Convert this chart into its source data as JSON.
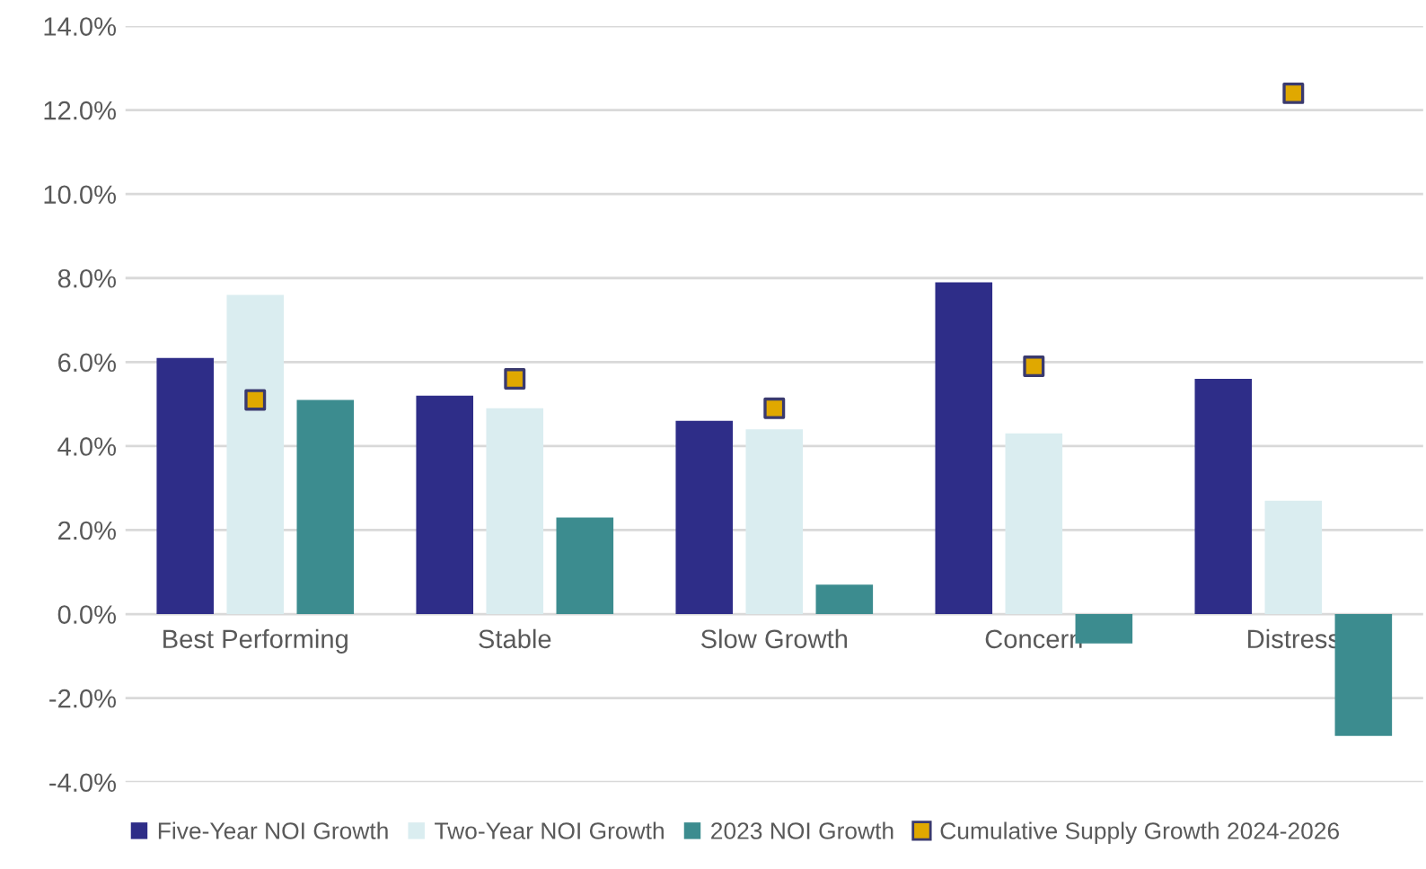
{
  "chart_data": {
    "type": "bar",
    "categories": [
      "Best Performing",
      "Stable",
      "Slow Growth",
      "Concern",
      "Distress"
    ],
    "series": [
      {
        "name": "Five-Year NOI Growth",
        "color": "#2e2d88",
        "values": [
          6.1,
          5.2,
          4.6,
          7.9,
          5.6
        ]
      },
      {
        "name": "Two-Year NOI Growth",
        "color": "#daedf0",
        "values": [
          7.6,
          4.9,
          4.4,
          4.3,
          2.7
        ]
      },
      {
        "name": "2023 NOI Growth",
        "color": "#3c8c8f",
        "values": [
          5.1,
          2.3,
          0.7,
          -0.7,
          -2.9
        ]
      },
      {
        "name": "Cumulative Supply Growth 2024-2026",
        "color": "#e0a800",
        "type": "scatter",
        "values": [
          5.1,
          5.6,
          4.9,
          5.9,
          12.4
        ]
      }
    ],
    "ylim": [
      -4,
      14
    ],
    "yticks": [
      {
        "value": -4,
        "label": "-4.0%"
      },
      {
        "value": -2,
        "label": "-2.0%"
      },
      {
        "value": 0,
        "label": "0.0%"
      },
      {
        "value": 2,
        "label": "2.0%"
      },
      {
        "value": 4,
        "label": "4.0%"
      },
      {
        "value": 6,
        "label": "6.0%"
      },
      {
        "value": 8,
        "label": "8.0%"
      },
      {
        "value": 10,
        "label": "10.0%"
      },
      {
        "value": 12,
        "label": "12.0%"
      },
      {
        "value": 14,
        "label": "14.0%"
      }
    ],
    "grid": "y",
    "legend": "bottom",
    "marker": "square"
  }
}
